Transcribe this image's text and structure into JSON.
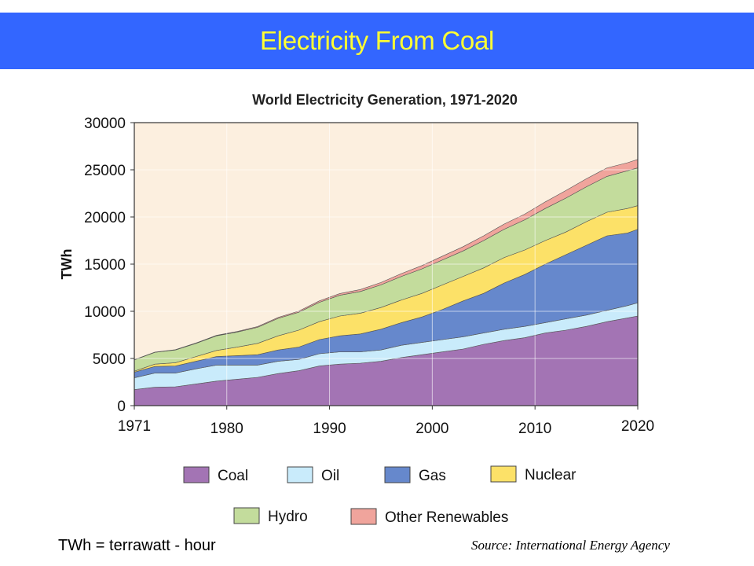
{
  "banner": {
    "title": "Electricity From Coal"
  },
  "footnote": "TWh = terrawatt - hour",
  "source": "Source: International Energy Agency",
  "colors": {
    "banner": "#3366ff",
    "banner_text": "#ffff33",
    "plot_background": "#fcefdf"
  },
  "chart_data": {
    "type": "area",
    "stacked": true,
    "title": "World Electricity Generation, 1971-2020",
    "xlabel": "",
    "ylabel": "TWh",
    "xlim": [
      1971,
      2020
    ],
    "ylim": [
      0,
      30000
    ],
    "x_ticks": [
      "1971",
      "1980",
      "1990",
      "2000",
      "2010",
      "2020"
    ],
    "y_ticks": [
      "0",
      "5000",
      "10000",
      "15000",
      "20000",
      "25000",
      "30000"
    ],
    "grid": true,
    "legend_position": "bottom",
    "x": [
      1971,
      1973,
      1975,
      1977,
      1979,
      1981,
      1983,
      1985,
      1987,
      1989,
      1991,
      1993,
      1995,
      1997,
      1999,
      2001,
      2003,
      2005,
      2007,
      2009,
      2011,
      2013,
      2015,
      2017,
      2019,
      2020
    ],
    "series": [
      {
        "name": "Coal",
        "color": "#a374b4",
        "values": [
          1700,
          1950,
          2000,
          2300,
          2600,
          2800,
          3000,
          3400,
          3700,
          4200,
          4400,
          4500,
          4700,
          5100,
          5400,
          5700,
          6000,
          6500,
          6900,
          7200,
          7700,
          8000,
          8400,
          8900,
          9300,
          9500
        ]
      },
      {
        "name": "Oil",
        "color": "#c9ebfb",
        "values": [
          1250,
          1500,
          1450,
          1600,
          1700,
          1500,
          1300,
          1300,
          1200,
          1300,
          1300,
          1200,
          1200,
          1300,
          1300,
          1300,
          1300,
          1200,
          1200,
          1200,
          1100,
          1200,
          1200,
          1200,
          1300,
          1400
        ]
      },
      {
        "name": "Gas",
        "color": "#6688cc",
        "values": [
          600,
          700,
          750,
          800,
          900,
          1000,
          1100,
          1200,
          1300,
          1500,
          1700,
          1900,
          2200,
          2400,
          2700,
          3200,
          3800,
          4200,
          4900,
          5500,
          6200,
          6800,
          7400,
          7900,
          7700,
          7800
        ]
      },
      {
        "name": "Nuclear",
        "color": "#fce168",
        "values": [
          100,
          250,
          350,
          500,
          650,
          900,
          1200,
          1500,
          1800,
          1900,
          2100,
          2200,
          2300,
          2400,
          2500,
          2600,
          2600,
          2700,
          2700,
          2600,
          2500,
          2400,
          2500,
          2500,
          2600,
          2500
        ]
      },
      {
        "name": "Hydro",
        "color": "#c3dc9c",
        "values": [
          1200,
          1250,
          1350,
          1400,
          1550,
          1600,
          1700,
          1850,
          1900,
          2050,
          2200,
          2300,
          2400,
          2500,
          2600,
          2650,
          2700,
          2900,
          3000,
          3200,
          3400,
          3600,
          3700,
          3800,
          4000,
          4000
        ]
      },
      {
        "name": "Other Renewables",
        "color": "#f0a49c",
        "values": [
          20,
          25,
          30,
          40,
          50,
          60,
          80,
          100,
          120,
          150,
          180,
          210,
          250,
          300,
          350,
          400,
          450,
          500,
          550,
          600,
          700,
          800,
          850,
          900,
          850,
          900
        ]
      }
    ]
  }
}
